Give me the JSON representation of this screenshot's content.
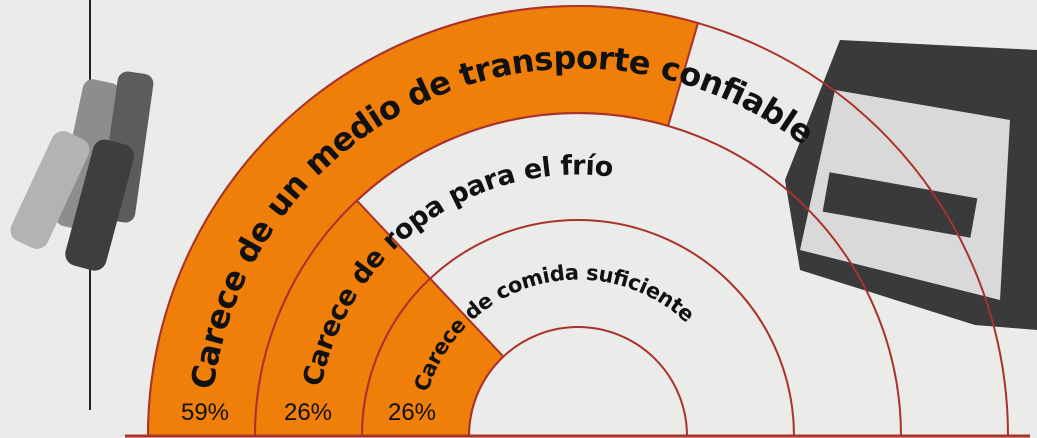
{
  "chart_data": {
    "type": "radial-bar",
    "categories": [
      "Carece de un medio de transporte confiable",
      "Carece de ropa para el frío",
      "Carece de comida suficiente"
    ],
    "values": [
      59,
      26,
      26
    ],
    "value_labels": [
      "59%",
      "26%",
      "26%"
    ],
    "ylim": [
      0,
      100
    ],
    "color": "#f07f0a"
  }
}
